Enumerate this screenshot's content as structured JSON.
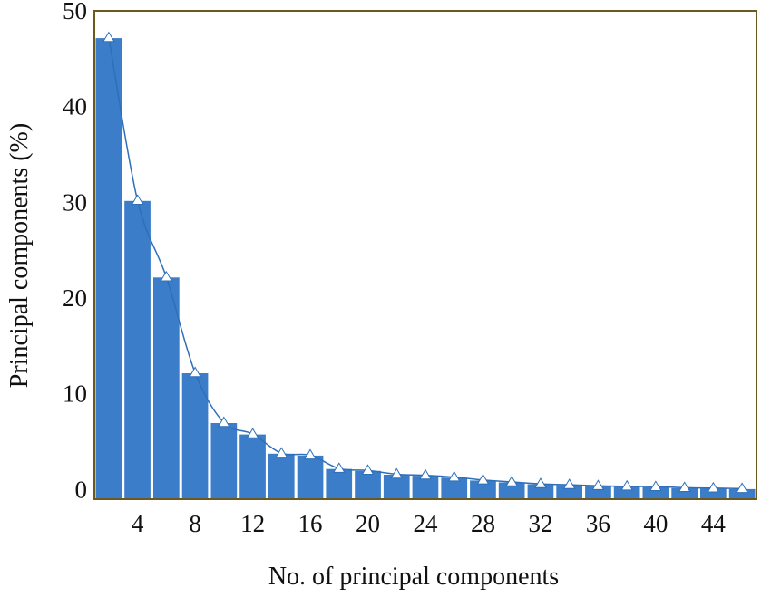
{
  "chart_data": {
    "type": "bar",
    "title": "",
    "xlabel": "No. of principal components",
    "ylabel": "Principal components (%)",
    "x": [
      2,
      4,
      6,
      8,
      10,
      12,
      14,
      16,
      18,
      20,
      22,
      24,
      26,
      28,
      30,
      32,
      34,
      36,
      38,
      40,
      42,
      44,
      46
    ],
    "values": [
      47.2,
      30.2,
      22.2,
      12.2,
      7.0,
      5.8,
      3.8,
      3.6,
      2.2,
      2.0,
      1.6,
      1.5,
      1.3,
      1.0,
      0.8,
      0.6,
      0.5,
      0.4,
      0.35,
      0.3,
      0.2,
      0.15,
      0.1
    ],
    "line_overlay": true,
    "xlim": [
      1,
      47
    ],
    "ylim": [
      -1,
      50
    ],
    "xticks": [
      4,
      8,
      12,
      16,
      20,
      24,
      28,
      32,
      36,
      40,
      44
    ],
    "yticks": [
      0,
      10,
      20,
      30,
      40,
      50
    ],
    "grid": false,
    "colors": {
      "bar": "#3b7dc9",
      "bar_edge": "#ffffff",
      "line": "#2f6fb8",
      "marker_fill": "#ffffff",
      "frame": "#6b5a1e"
    }
  }
}
